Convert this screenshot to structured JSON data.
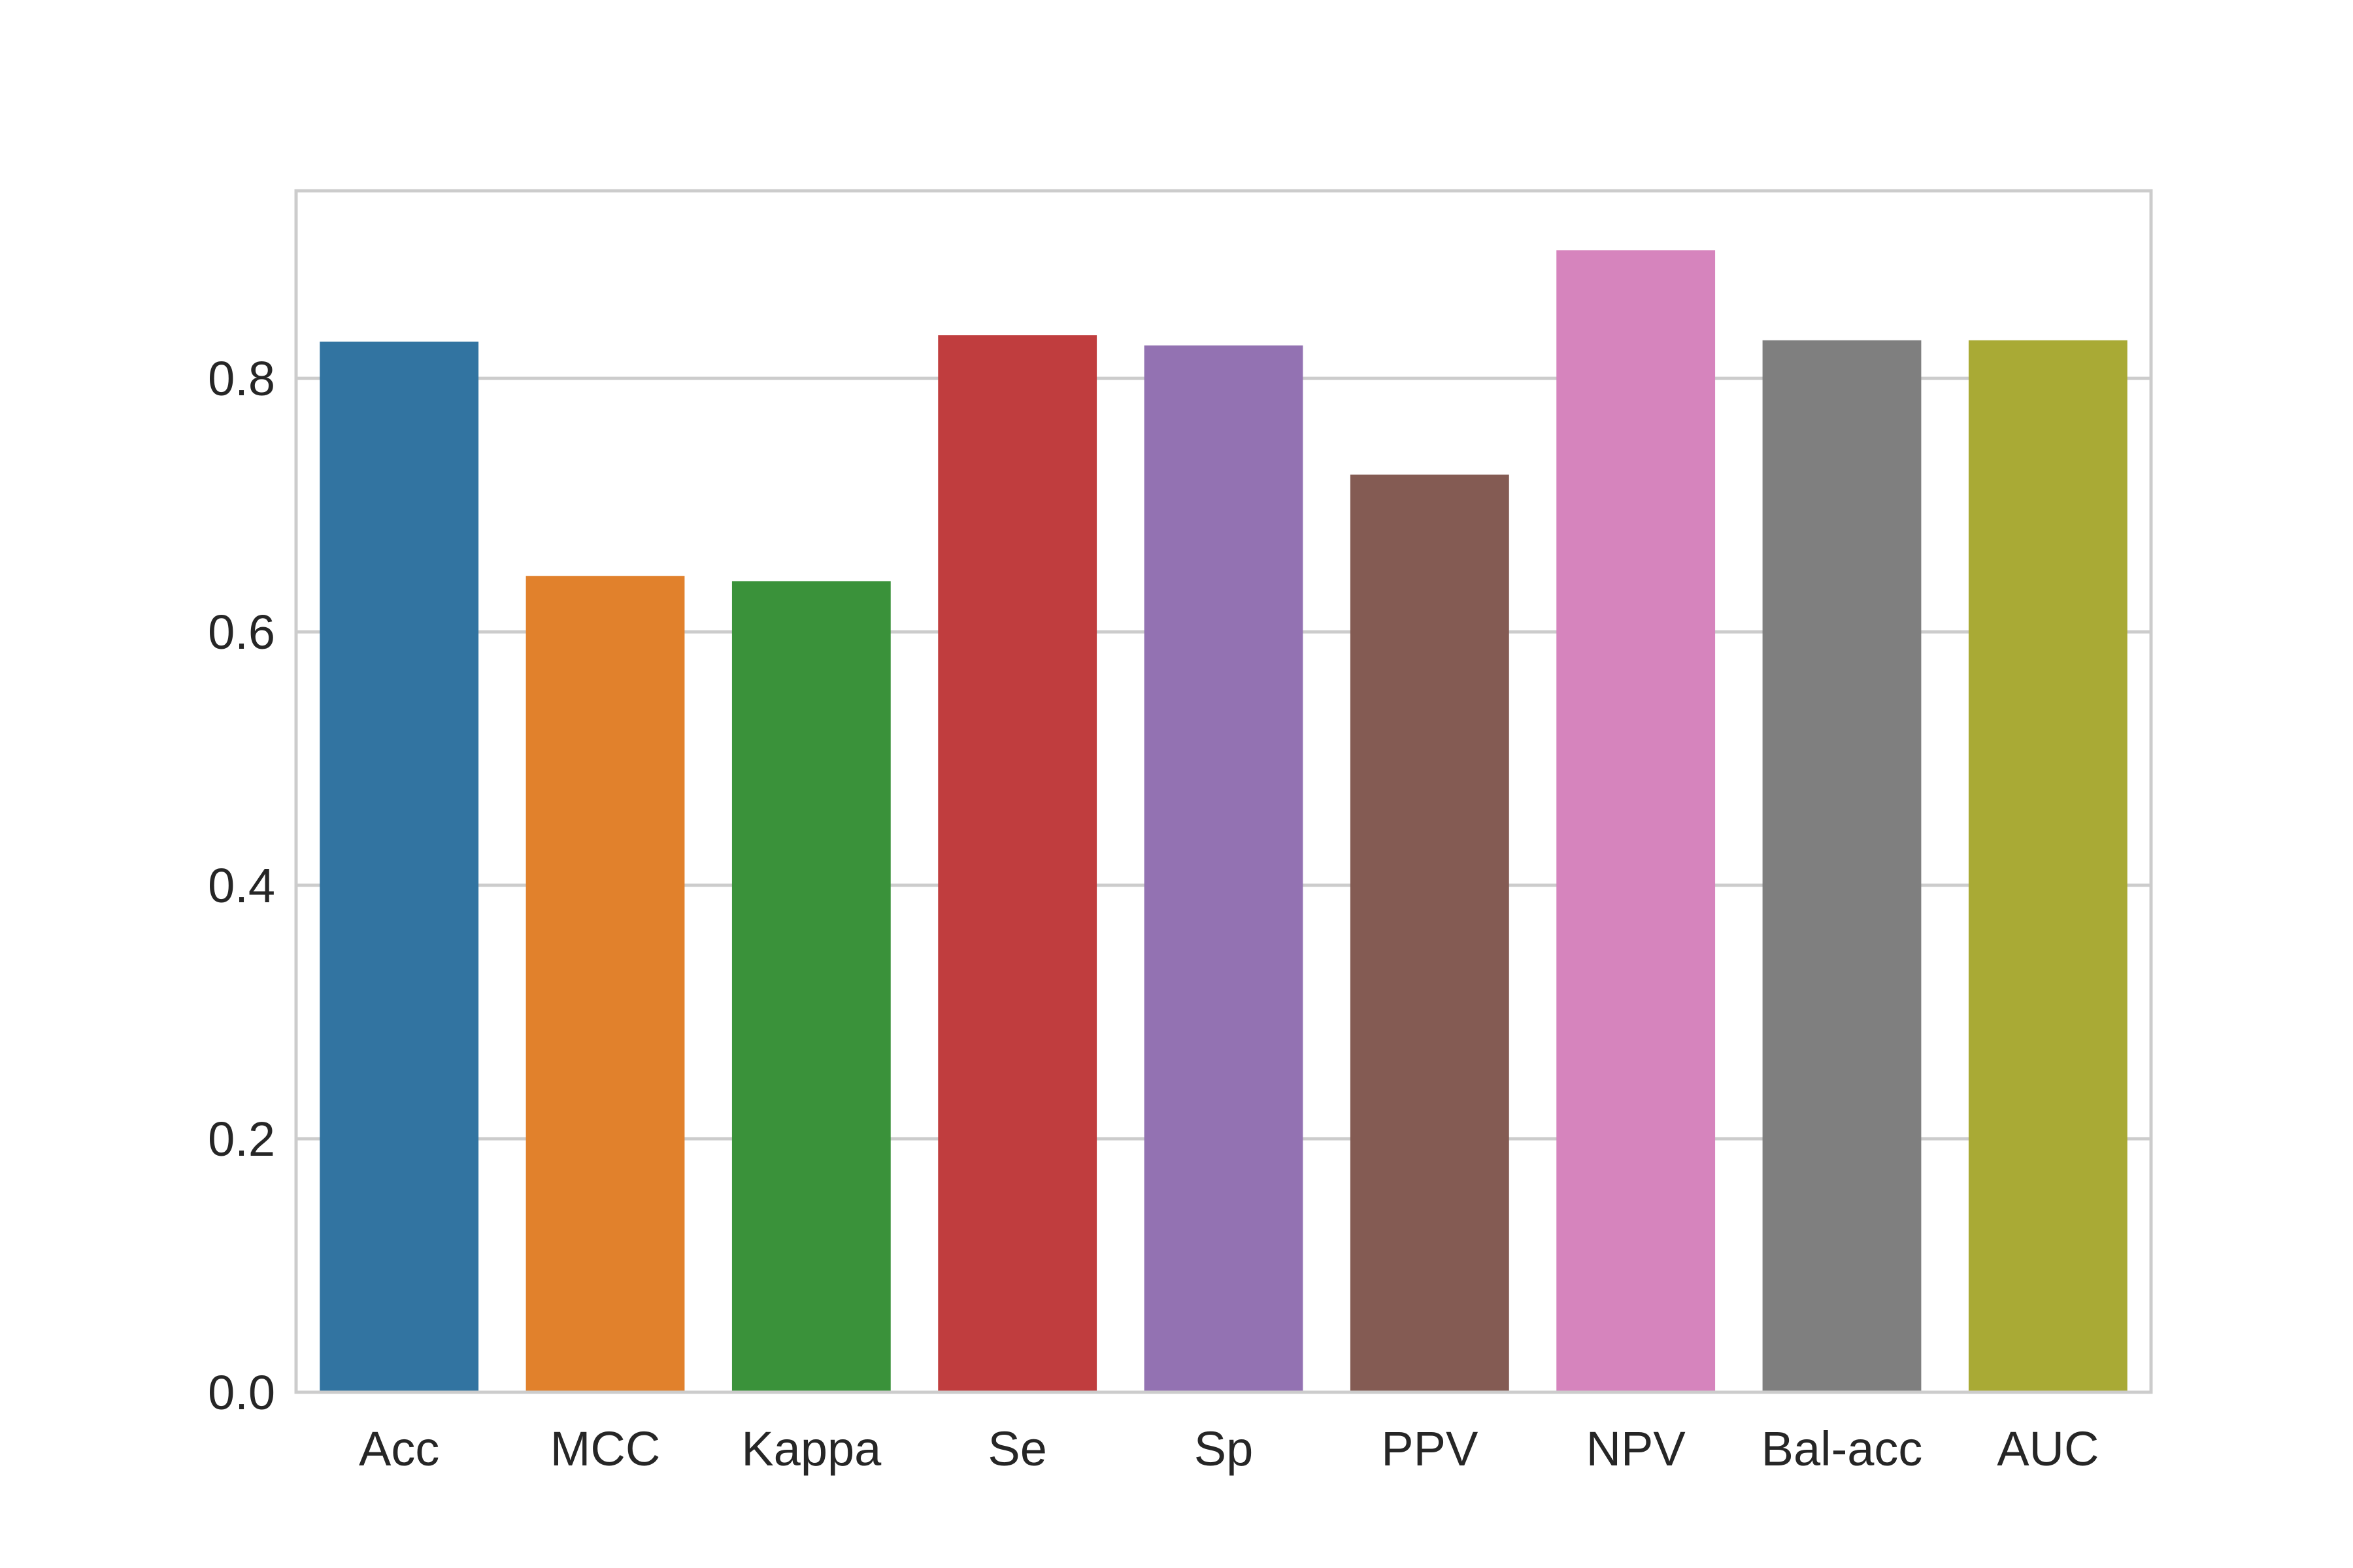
{
  "chart_data": {
    "type": "bar",
    "title": "",
    "xlabel": "",
    "ylabel": "",
    "categories": [
      "Acc",
      "MCC",
      "Kappa",
      "Se",
      "Sp",
      "PPV",
      "NPV",
      "Bal-acc",
      "AUC"
    ],
    "values": [
      0.829,
      0.644,
      0.64,
      0.834,
      0.826,
      0.724,
      0.901,
      0.83,
      0.83
    ],
    "colors": [
      "#3274a1",
      "#e1812c",
      "#3a923a",
      "#c03d3e",
      "#9372b2",
      "#845b53",
      "#d684bd",
      "#7f7f7f",
      "#a9aa35"
    ],
    "ylim": [
      0,
      0.948
    ],
    "yticks": [
      0.0,
      0.2,
      0.4,
      0.6,
      0.8
    ],
    "ytick_labels": [
      "0.0",
      "0.2",
      "0.4",
      "0.6",
      "0.8"
    ],
    "grid": true,
    "grid_axis": "y",
    "frame_color": "#cccccc"
  }
}
